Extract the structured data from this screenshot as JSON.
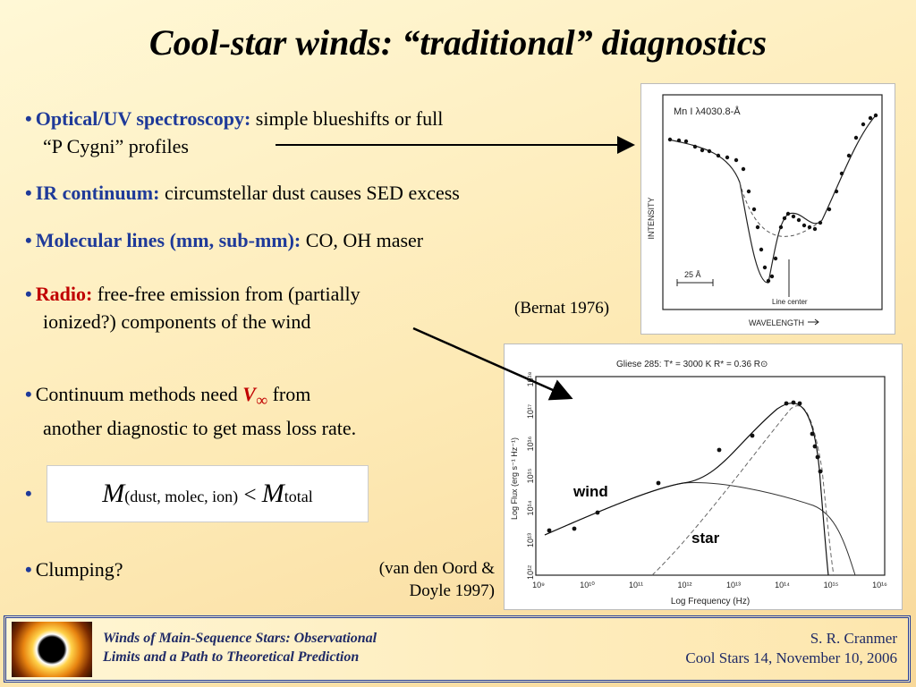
{
  "title": "Cool-star winds: “traditional” diagnostics",
  "bullets": {
    "b1_label": "Optical/UV spectroscopy:",
    "b1_text1": "simple blueshifts or full",
    "b1_text2": "“P Cygni” profiles",
    "b2_label": "IR continuum:",
    "b2_text": "circumstellar dust causes SED excess",
    "b3_label": "Molecular lines (mm, sub-mm):",
    "b3_text": "CO, OH maser",
    "b4_label": "Radio:",
    "b4_text1": "free-free emission from (partially",
    "b4_text2": "ionized?) components of the wind",
    "b5_text1": "Continuum methods need",
    "b5_v": "V",
    "b5_inf": "∞",
    "b5_text2": "from",
    "b5_text3": "another diagnostic to get mass loss rate.",
    "b7_text": "Clumping?"
  },
  "equation": {
    "m": "M",
    "sub_left": "(dust, molec, ion)",
    "rel": "<",
    "sub_right": "total"
  },
  "captions": {
    "bernat": "(Bernat 1976)",
    "vdo1": "(van den Oord &",
    "vdo2": "Doyle 1997)"
  },
  "fig1": {
    "label": "Mn I λ4030.8-Å",
    "ylabel": "INTENSITY",
    "xlabel": "WAVELENGTH",
    "scale": "25 Å",
    "line_center": "Line center"
  },
  "fig2": {
    "title": "Gliese 285: T* = 3000 K   R* = 0.36 R⊙",
    "ylabel": "Log Flux (erg s⁻¹ Hz⁻¹)",
    "xlabel": "Log Frequency (Hz)",
    "wind_label": "wind",
    "star_label": "star",
    "x_ticks": [
      "10⁹",
      "10¹⁰",
      "10¹¹",
      "10¹²",
      "10¹³",
      "10¹⁴",
      "10¹⁵",
      "10¹⁶"
    ],
    "y_ticks": [
      "10¹²",
      "10¹³",
      "10¹⁴",
      "10¹⁵",
      "10¹⁶",
      "10¹⁷",
      "10¹⁸"
    ]
  },
  "footer": {
    "left1": "Winds of Main-Sequence Stars:  Observational",
    "left2": "Limits and a Path to Theoretical Prediction",
    "right1": "S. R. Cranmer",
    "right2": "Cool Stars 14,  November 10, 2006"
  }
}
